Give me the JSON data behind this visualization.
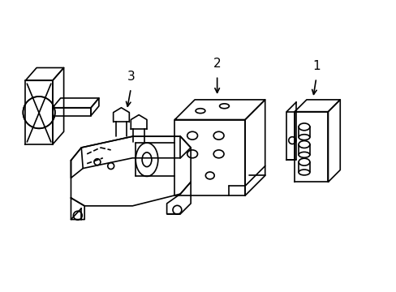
{
  "bg_color": "#ffffff",
  "line_color": "#000000",
  "line_width": 1.2,
  "label_fontsize": 11
}
